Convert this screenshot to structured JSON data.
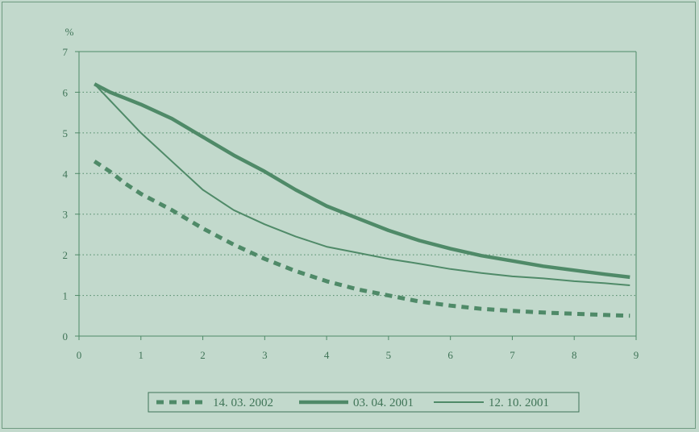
{
  "chart_data": {
    "type": "line",
    "ylabel": "%",
    "xlim": [
      0,
      9
    ],
    "ylim": [
      0,
      7
    ],
    "x_ticks": [
      "0",
      "1",
      "2",
      "3",
      "4",
      "5",
      "6",
      "7",
      "8",
      "9"
    ],
    "y_ticks": [
      "0",
      "1",
      "2",
      "3",
      "4",
      "5",
      "6",
      "7"
    ],
    "grid": "horizontal dotted",
    "legend_position": "bottom",
    "colors": {
      "background": "#c2d9cc",
      "line": "#4f8a68",
      "text": "#3f7457"
    },
    "series": [
      {
        "name": "14. 03. 2002",
        "style": "dashed-thick",
        "x": [
          0.25,
          0.5,
          0.75,
          1.0,
          1.25,
          1.5,
          2.0,
          2.5,
          3.0,
          3.5,
          4.0,
          4.5,
          5.0,
          5.5,
          6.0,
          6.5,
          7.0,
          7.5,
          8.0,
          8.5,
          8.9
        ],
        "y": [
          4.3,
          4.05,
          3.75,
          3.5,
          3.3,
          3.1,
          2.65,
          2.25,
          1.9,
          1.6,
          1.35,
          1.15,
          1.0,
          0.85,
          0.75,
          0.67,
          0.62,
          0.58,
          0.55,
          0.52,
          0.5
        ]
      },
      {
        "name": "03. 04. 2001",
        "style": "solid-thick",
        "x": [
          0.25,
          0.5,
          1.0,
          1.5,
          2.0,
          2.5,
          3.0,
          3.5,
          4.0,
          4.5,
          5.0,
          5.5,
          6.0,
          6.5,
          7.0,
          7.5,
          8.0,
          8.5,
          8.9
        ],
        "y": [
          6.2,
          6.0,
          5.7,
          5.35,
          4.9,
          4.45,
          4.05,
          3.6,
          3.2,
          2.9,
          2.6,
          2.35,
          2.15,
          1.98,
          1.85,
          1.72,
          1.62,
          1.52,
          1.45
        ]
      },
      {
        "name": "12. 10. 2001",
        "style": "solid-thin",
        "x": [
          0.25,
          0.5,
          0.75,
          1.0,
          1.25,
          1.5,
          2.0,
          2.5,
          3.0,
          3.5,
          4.0,
          4.5,
          5.0,
          5.5,
          6.0,
          6.5,
          7.0,
          7.5,
          8.0,
          8.5,
          8.9
        ],
        "y": [
          6.2,
          5.8,
          5.4,
          5.0,
          4.65,
          4.3,
          3.6,
          3.1,
          2.75,
          2.45,
          2.2,
          2.05,
          1.9,
          1.78,
          1.65,
          1.55,
          1.47,
          1.42,
          1.35,
          1.3,
          1.25
        ]
      }
    ]
  }
}
